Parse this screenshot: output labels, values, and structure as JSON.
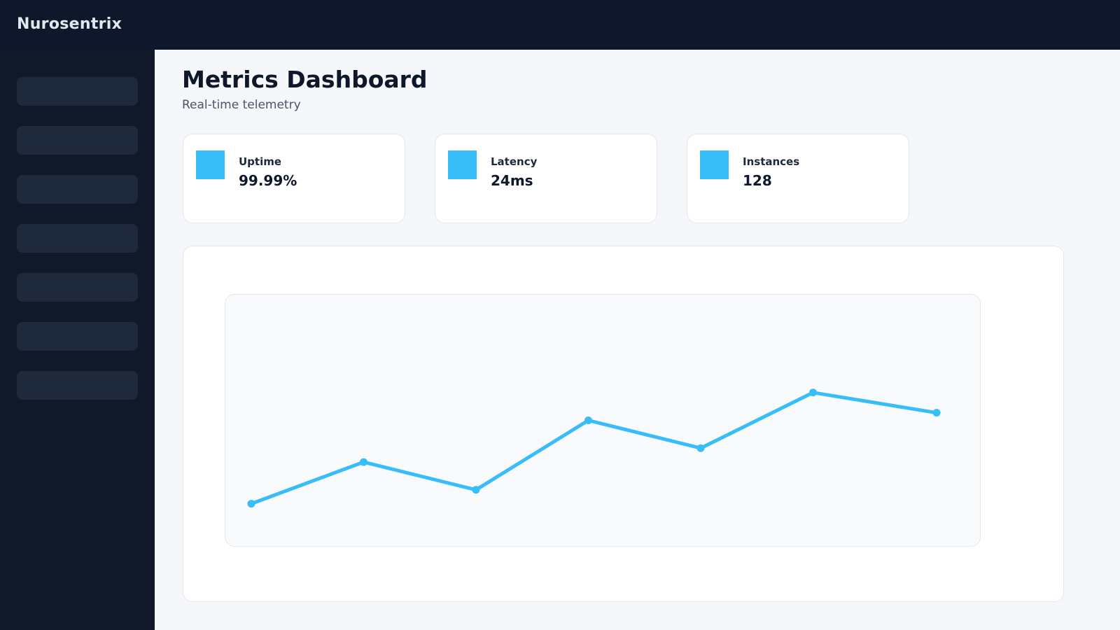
{
  "app": {
    "brand": "Nurosentrix"
  },
  "sidebar": {
    "item_count": 7
  },
  "page": {
    "title": "Metrics Dashboard",
    "subtitle": "Real-time telemetry"
  },
  "stats": [
    {
      "label": "Uptime",
      "value": "99.99%",
      "icon": "square-icon",
      "color": "#38bdf8"
    },
    {
      "label": "Latency",
      "value": "24ms",
      "icon": "square-icon",
      "color": "#38bdf8"
    },
    {
      "label": "Instances",
      "value": "128",
      "icon": "square-icon",
      "color": "#38bdf8"
    }
  ],
  "chart_data": {
    "type": "line",
    "title": "",
    "xlabel": "",
    "ylabel": "",
    "grid": false,
    "axes_visible": false,
    "x": [
      0,
      1,
      2,
      3,
      4,
      5,
      6.1
    ],
    "ylim": [
      0,
      100
    ],
    "series": [
      {
        "values": [
          17,
          33.5,
          22.5,
          50,
          39,
          61,
          53
        ],
        "color": "#38bdf8"
      }
    ]
  }
}
